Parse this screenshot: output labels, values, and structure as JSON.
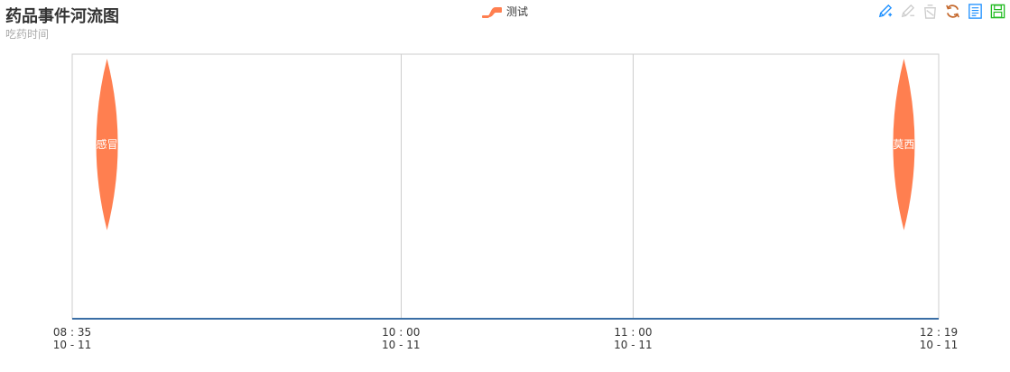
{
  "title": "药品事件河流图",
  "subtitle": "吃药时间",
  "legend": {
    "items": [
      "测试"
    ]
  },
  "toolbox": {
    "items": [
      {
        "name": "mark-icon",
        "color": "#1e90ff"
      },
      {
        "name": "mark-undo-icon",
        "color": "#cccccc"
      },
      {
        "name": "mark-clear-icon",
        "color": "#cccccc"
      },
      {
        "name": "restore-icon",
        "color": "#c4682c"
      },
      {
        "name": "data-view-icon",
        "color": "#1e90ff"
      },
      {
        "name": "save-as-image-icon",
        "color": "#22bb22"
      }
    ]
  },
  "chart_data": {
    "type": "eventRiver",
    "title": "药品事件河流图",
    "subtitle": "吃药时间",
    "legend": [
      "测试"
    ],
    "color": "#ff7f50",
    "x_axis": {
      "type": "time",
      "min": "10-11 08:35",
      "max": "10-11 12:19",
      "ticks": [
        {
          "value": "10-11 08:35",
          "time": "08 : 35",
          "date": "10 - 11"
        },
        {
          "value": "10-11 10:00",
          "time": "10 : 00",
          "date": "10 - 11"
        },
        {
          "value": "10-11 11:00",
          "time": "11 : 00",
          "date": "10 - 11"
        },
        {
          "value": "10-11 12:19",
          "time": "12 : 19",
          "date": "10 - 11"
        }
      ]
    },
    "grid": true,
    "series": [
      {
        "name": "测试",
        "events": [
          {
            "label": "感冒",
            "time": "10-11 08:44",
            "value": 1
          },
          {
            "label": "莫西",
            "time": "10-11 12:10",
            "value": 1
          }
        ]
      }
    ]
  }
}
